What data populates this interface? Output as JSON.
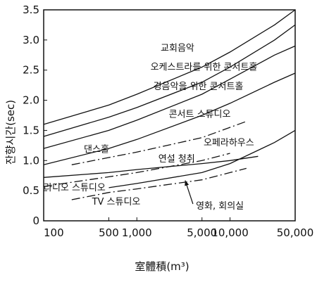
{
  "chart_data": {
    "type": "line",
    "title": "",
    "xlabel": "室體積(m³)",
    "ylabel": "잔향시간(sec)",
    "x_scale": "log",
    "xlim": [
      100,
      50000
    ],
    "ylim": [
      0,
      3.5
    ],
    "grid": false,
    "x_ticks": [
      {
        "value": 100,
        "label": "100"
      },
      {
        "value": 500,
        "label": "500"
      },
      {
        "value": 1000,
        "label": "1,000"
      },
      {
        "value": 5000,
        "label": "5,000"
      },
      {
        "value": 10000,
        "label": "10,000"
      },
      {
        "value": 50000,
        "label": "50,000"
      }
    ],
    "y_ticks": [
      {
        "value": 0,
        "label": "0"
      },
      {
        "value": 0.5,
        "label": "0.5"
      },
      {
        "value": 1.0,
        "label": "1.0"
      },
      {
        "value": 1.5,
        "label": "1.5"
      },
      {
        "value": 2.0,
        "label": "2.0"
      },
      {
        "value": 2.5,
        "label": "2.5"
      },
      {
        "value": 3.0,
        "label": "3.0"
      },
      {
        "value": 3.5,
        "label": "3.5"
      }
    ],
    "series": [
      {
        "name": "교회음악",
        "style": "solid",
        "points": [
          [
            100,
            1.6
          ],
          [
            500,
            1.92
          ],
          [
            1000,
            2.1
          ],
          [
            5000,
            2.55
          ],
          [
            10000,
            2.8
          ],
          [
            30000,
            3.25
          ],
          [
            50000,
            3.5
          ]
        ]
      },
      {
        "name": "오케스트라를 위한 콘서트홀",
        "style": "solid",
        "points": [
          [
            100,
            1.4
          ],
          [
            500,
            1.72
          ],
          [
            1000,
            1.88
          ],
          [
            5000,
            2.3
          ],
          [
            10000,
            2.55
          ],
          [
            30000,
            3.0
          ],
          [
            50000,
            3.25
          ]
        ]
      },
      {
        "name": "경음악을 위한 콘서트홀",
        "style": "solid",
        "points": [
          [
            100,
            1.2
          ],
          [
            500,
            1.5
          ],
          [
            1000,
            1.67
          ],
          [
            5000,
            2.1
          ],
          [
            10000,
            2.35
          ],
          [
            30000,
            2.75
          ],
          [
            50000,
            2.9
          ]
        ]
      },
      {
        "name": "콘서트 스튜디오",
        "style": "solid",
        "points": [
          [
            100,
            0.93
          ],
          [
            500,
            1.2
          ],
          [
            1000,
            1.35
          ],
          [
            5000,
            1.75
          ],
          [
            10000,
            1.95
          ],
          [
            30000,
            2.3
          ],
          [
            50000,
            2.45
          ]
        ]
      },
      {
        "name": "오페라하우스",
        "style": "solid",
        "points": [
          [
            500,
            0.55
          ],
          [
            1000,
            0.62
          ],
          [
            5000,
            0.8
          ],
          [
            10000,
            0.95
          ],
          [
            30000,
            1.3
          ],
          [
            50000,
            1.5
          ]
        ]
      },
      {
        "name": "연설 청취",
        "style": "solid",
        "points": [
          [
            100,
            0.72
          ],
          [
            500,
            0.8
          ],
          [
            1000,
            0.85
          ],
          [
            5000,
            0.95
          ],
          [
            10000,
            1.0
          ],
          [
            20000,
            1.07
          ]
        ]
      },
      {
        "name": "댄스홀",
        "style": "dashdot",
        "points": [
          [
            200,
            0.93
          ],
          [
            500,
            1.05
          ],
          [
            1000,
            1.14
          ],
          [
            5000,
            1.38
          ],
          [
            10000,
            1.55
          ],
          [
            15000,
            1.65
          ]
        ]
      },
      {
        "name": "라디오 스튜디오",
        "style": "dashdot",
        "points": [
          [
            100,
            0.57
          ],
          [
            500,
            0.73
          ],
          [
            1000,
            0.8
          ],
          [
            5000,
            1.0
          ],
          [
            10000,
            1.12
          ]
        ]
      },
      {
        "name": "TV 스튜디오",
        "style": "dashdot",
        "points": [
          [
            200,
            0.35
          ],
          [
            500,
            0.47
          ],
          [
            1000,
            0.53
          ],
          [
            5000,
            0.68
          ],
          [
            10000,
            0.8
          ],
          [
            15000,
            0.87
          ]
        ]
      }
    ],
    "annotations": [
      {
        "text": "교회음악",
        "x": 1800,
        "y": 2.82
      },
      {
        "text": "오케스트라를 위한 콘서트홀",
        "x": 1400,
        "y": 2.5
      },
      {
        "text": "경음악을 위한 콘서트홀",
        "x": 1500,
        "y": 2.18
      },
      {
        "text": "콘서트 스튜디오",
        "x": 2200,
        "y": 1.72
      },
      {
        "text": "댄스홀",
        "x": 270,
        "y": 1.14
      },
      {
        "text": "오페라하우스",
        "x": 5200,
        "y": 1.25
      },
      {
        "text": "연설 청취",
        "x": 1700,
        "y": 0.98
      },
      {
        "text": "라디오 스튜디오",
        "x": 100,
        "y": 0.5
      },
      {
        "text": "TV 스튜디오",
        "x": 330,
        "y": 0.27
      },
      {
        "text": "영화, 회의실",
        "x": 4300,
        "y": 0.2
      }
    ],
    "arrow": {
      "from": [
        4000,
        0.28
      ],
      "to": [
        3300,
        0.67
      ]
    }
  }
}
